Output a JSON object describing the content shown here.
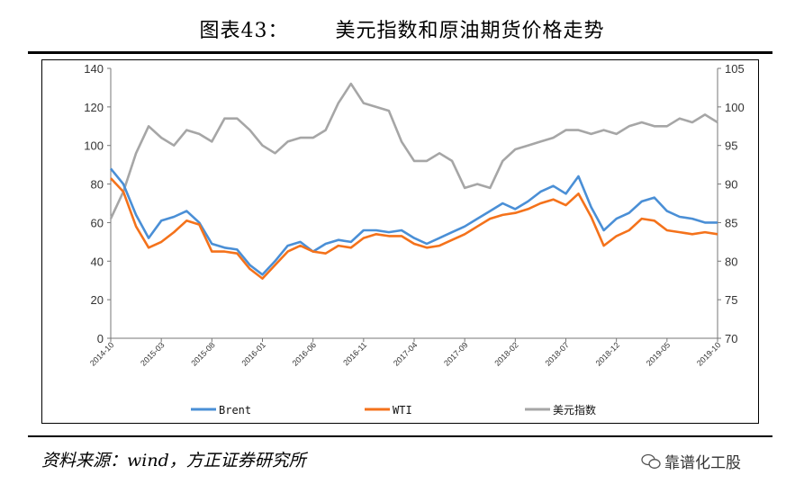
{
  "header": {
    "figure_label": "图表43：",
    "figure_title": "美元指数和原油期货价格走势"
  },
  "footer": {
    "source": "资料来源：wind，方正证券研究所",
    "watermark": "靠谱化工股"
  },
  "colors": {
    "brent": "#4a8fd6",
    "wti": "#f4721b",
    "usd": "#a6a6a6"
  },
  "chart_data": {
    "type": "line",
    "x_ticks": [
      "2014-10",
      "2015-03",
      "2015-08",
      "2016-01",
      "2016-06",
      "2016-11",
      "2017-04",
      "2017-09",
      "2018-02",
      "2018-07",
      "2018-12",
      "2019-05",
      "2019-10"
    ],
    "y_left": {
      "lim": [
        0,
        140
      ],
      "ticks": [
        0,
        20,
        40,
        60,
        80,
        100,
        120,
        140
      ]
    },
    "y_right": {
      "lim": [
        70,
        105
      ],
      "ticks": [
        70,
        75,
        80,
        85,
        90,
        95,
        100,
        105
      ]
    },
    "grid": false,
    "legend_position": "bottom",
    "series": [
      {
        "name": "Brent",
        "axis": "left",
        "color": "#4a8fd6",
        "values": [
          88,
          80,
          64,
          52,
          61,
          63,
          66,
          60,
          49,
          47,
          46,
          38,
          33,
          40,
          48,
          50,
          45,
          49,
          51,
          50,
          56,
          56,
          55,
          56,
          52,
          49,
          52,
          55,
          58,
          62,
          66,
          70,
          67,
          71,
          76,
          79,
          75,
          84,
          68,
          56,
          62,
          65,
          71,
          73,
          66,
          63,
          62,
          60,
          60
        ]
      },
      {
        "name": "WTI",
        "axis": "left",
        "color": "#f4721b",
        "values": [
          83,
          76,
          58,
          47,
          50,
          55,
          61,
          59,
          45,
          45,
          44,
          36,
          31,
          38,
          45,
          48,
          45,
          44,
          48,
          47,
          52,
          54,
          53,
          53,
          49,
          47,
          48,
          51,
          54,
          58,
          62,
          64,
          65,
          67,
          70,
          72,
          69,
          75,
          63,
          48,
          53,
          56,
          62,
          61,
          56,
          55,
          54,
          55,
          54
        ]
      },
      {
        "name": "美元指数",
        "axis": "right",
        "color": "#a6a6a6",
        "values": [
          85.5,
          89,
          94,
          97.5,
          96,
          95,
          97,
          96.5,
          95.5,
          98.5,
          98.5,
          97,
          95,
          94,
          95.5,
          96,
          96,
          97,
          100.5,
          103,
          100.5,
          100,
          99.5,
          95.5,
          93,
          93,
          94,
          93,
          89.5,
          90,
          89.5,
          93,
          94.5,
          95,
          95.5,
          96,
          97,
          97,
          96.5,
          97,
          96.5,
          97.5,
          98,
          97.5,
          97.5,
          98.5,
          98,
          99,
          98
        ]
      }
    ]
  }
}
